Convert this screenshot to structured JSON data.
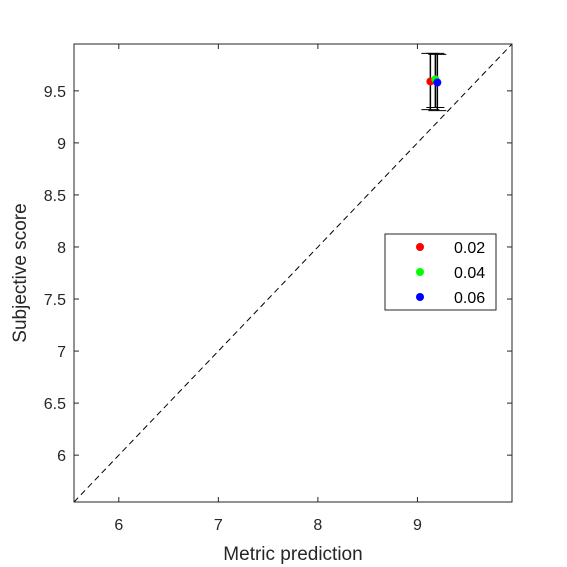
{
  "chart_data": {
    "type": "scatter",
    "title": "",
    "xlabel": "Metric prediction",
    "ylabel": "Subjective score",
    "xlim": [
      5.55,
      9.95
    ],
    "ylim": [
      5.55,
      9.95
    ],
    "xticks": [
      6,
      7,
      8,
      9
    ],
    "yticks": [
      6,
      6.5,
      7,
      7.5,
      8,
      8.5,
      9,
      9.5
    ],
    "xtick_labels": [
      "6",
      "7",
      "8",
      "9"
    ],
    "ytick_labels": [
      "6",
      "6.5",
      "7",
      "7.5",
      "8",
      "8.5",
      "9",
      "9.5"
    ],
    "grid": false,
    "box": true,
    "identity_line": {
      "style": "dashed",
      "color": "#000000"
    },
    "legend_position": "center-right",
    "series": [
      {
        "name": "0.02",
        "color": "#ff0000",
        "x": 9.13,
        "y": 9.59,
        "y_low": 9.32,
        "y_high": 9.86
      },
      {
        "name": "0.04",
        "color": "#00ff00",
        "x": 9.18,
        "y": 9.61,
        "y_low": 9.34,
        "y_high": 9.86
      },
      {
        "name": "0.06",
        "color": "#0000ff",
        "x": 9.2,
        "y": 9.58,
        "y_low": 9.31,
        "y_high": 9.85
      }
    ]
  }
}
